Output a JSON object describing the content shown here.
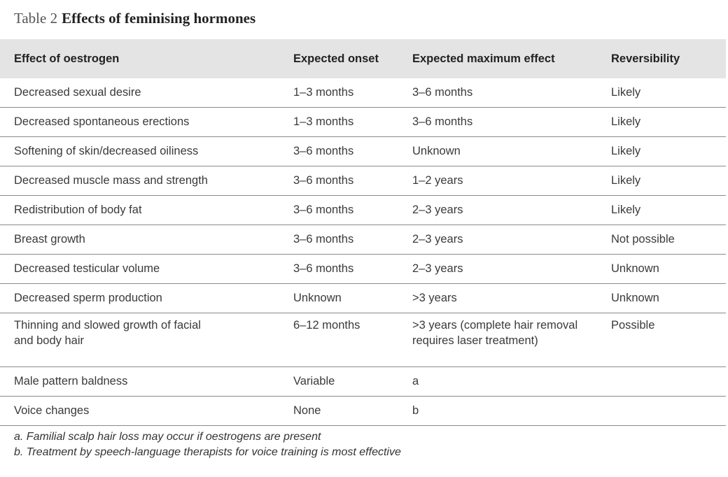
{
  "caption": {
    "label": "Table 2",
    "title": "Effects of feminising hormones"
  },
  "headers": [
    "Effect of oestrogen",
    "Expected onset",
    "Expected maximum effect",
    "Reversibility"
  ],
  "rows": [
    {
      "effect": "Decreased sexual desire",
      "onset": "1–3 months",
      "max": "3–6 months",
      "rev": "Likely"
    },
    {
      "effect": "Decreased spontaneous erections",
      "onset": "1–3 months",
      "max": "3–6 months",
      "rev": "Likely"
    },
    {
      "effect": "Softening of skin/decreased oiliness",
      "onset": "3–6 months",
      "max": "Unknown",
      "rev": "Likely"
    },
    {
      "effect": "Decreased muscle mass and strength",
      "onset": "3–6 months",
      "max": "1–2 years",
      "rev": "Likely"
    },
    {
      "effect": "Redistribution of body fat",
      "onset": "3–6 months",
      "max": "2–3 years",
      "rev": "Likely"
    },
    {
      "effect": "Breast growth",
      "onset": "3–6 months",
      "max": "2–3 years",
      "rev": "Not possible"
    },
    {
      "effect": "Decreased testicular volume",
      "onset": "3–6 months",
      "max": "2–3 years",
      "rev": "Unknown"
    },
    {
      "effect": "Decreased sperm production",
      "onset": "Unknown",
      "max": ">3 years",
      "rev": "Unknown"
    },
    {
      "effect": "Thinning and slowed growth of facial and body hair",
      "onset": "6–12 months",
      "max": ">3 years (complete hair removal requires laser treatment)",
      "rev": "Possible"
    },
    {
      "effect": "Male pattern baldness",
      "onset": "Variable",
      "max": "a",
      "rev": ""
    },
    {
      "effect": "Voice changes",
      "onset": "None",
      "max": "b",
      "rev": ""
    }
  ],
  "footnotes": [
    "a. Familial scalp hair loss may occur if oestrogens are present",
    "b. Treatment by speech-language therapists for voice training is most effective"
  ]
}
